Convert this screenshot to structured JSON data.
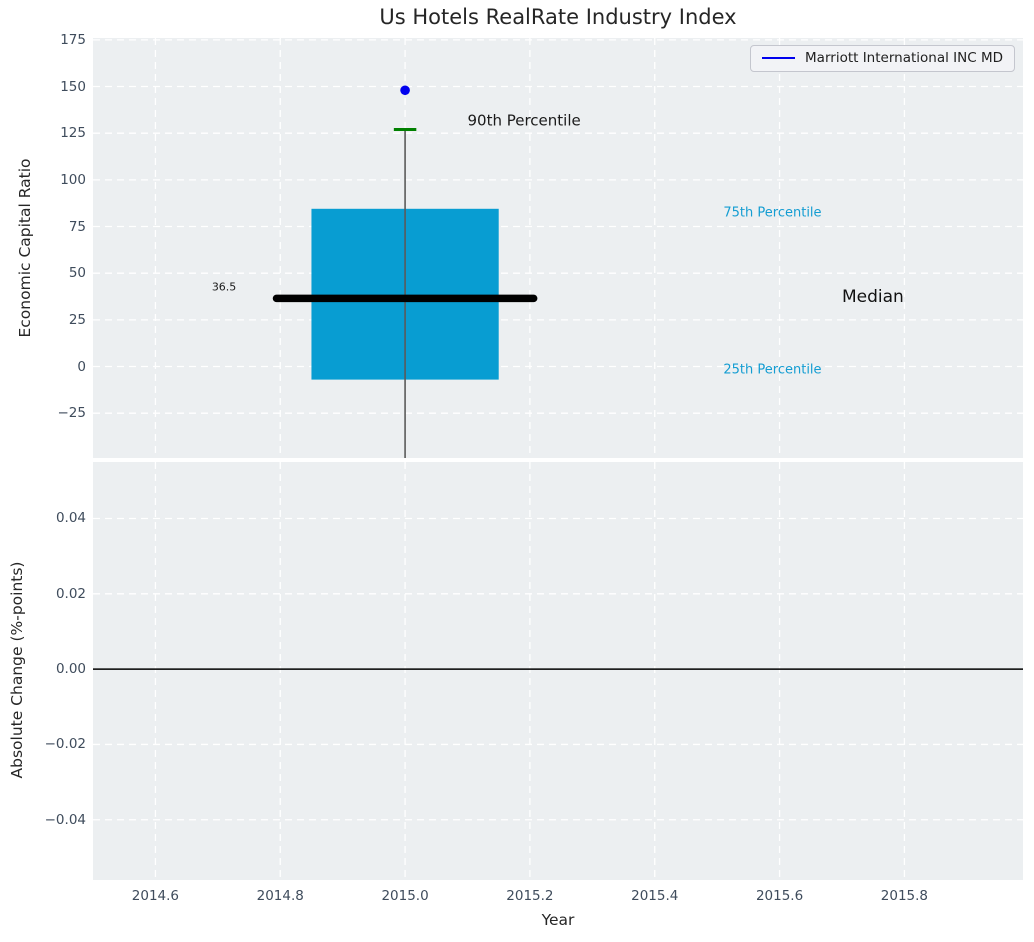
{
  "title": "Us Hotels RealRate Industry Index",
  "legend": {
    "label": "Marriott International INC MD"
  },
  "colors": {
    "figure_bg": "#ffffff",
    "axes_bg": "#eceff1",
    "grid": "#ffffff",
    "tick_label": "#3f4c5c",
    "text": "#262626",
    "box_fill": "#089dd2",
    "percentile_label": "#149dd2",
    "p90_cap": "#008000",
    "whisker": "#5a5a5a",
    "median_line": "#000000",
    "marker": "#0000ee",
    "zero_line": "#000000",
    "legend_bg": "#f2f3f6",
    "legend_border": "#c4c6ce"
  },
  "chart_data": [
    {
      "type": "boxplot",
      "title": "Us Hotels RealRate Industry Index",
      "ylabel": "Economic Capital Ratio",
      "legend_entries": [
        "Marriott International INC MD"
      ],
      "legend_position": "upper right",
      "grid": "dashed",
      "xlim": [
        2014.5,
        2015.99
      ],
      "ylim": [
        -49,
        176
      ],
      "ytick_values": [
        175,
        150,
        125,
        100,
        75,
        50,
        25,
        0,
        -25
      ],
      "ytick_labels": [
        "175",
        "150",
        "125",
        "100",
        "75",
        "50",
        "25",
        "0",
        "−25"
      ],
      "box": {
        "x": 2015.0,
        "marker_value": 148,
        "p90": 127,
        "q3": 84.5,
        "median": 36.5,
        "q1": -7,
        "whisker_low_clipped_at_axis_bottom": true,
        "box_half_width": 0.15,
        "median_half_width": 0.206,
        "cap_half_width": 0.018
      },
      "annotations": [
        {
          "name": "annotation-90th-percentile",
          "text": "90th Percentile",
          "x": 2015.1,
          "y": 131.5,
          "align": "left",
          "size": 15,
          "color": "#1a1a1a"
        },
        {
          "name": "annotation-75th-percentile",
          "text": "75th Percentile",
          "x": 2015.51,
          "y": 81.5,
          "align": "left",
          "size": 13,
          "color": "#149dd2"
        },
        {
          "name": "annotation-median",
          "text": "Median",
          "x": 2015.7,
          "y": 36.5,
          "align": "left",
          "size": 17,
          "color": "#111111"
        },
        {
          "name": "annotation-25th-percentile",
          "text": "25th Percentile",
          "x": 2015.51,
          "y": -2.5,
          "align": "left",
          "size": 13,
          "color": "#149dd2"
        },
        {
          "name": "annotation-median-value",
          "text": "36.5",
          "x": 2014.71,
          "y": 42,
          "align": "center",
          "size": 11,
          "color": "#1a1a1a"
        }
      ]
    },
    {
      "type": "line",
      "ylabel": "Absolute Change (%-points)",
      "xlabel": "Year",
      "grid": "dashed",
      "xlim": [
        2014.5,
        2015.99
      ],
      "ylim": [
        -0.056,
        0.055
      ],
      "ytick_values": [
        0.04,
        0.02,
        0,
        -0.02,
        -0.04
      ],
      "ytick_labels": [
        "0.04",
        "0.02",
        "0.00",
        "−0.02",
        "−0.04"
      ],
      "xtick_values": [
        2014.6,
        2014.8,
        2015.0,
        2015.2,
        2015.4,
        2015.6,
        2015.8
      ],
      "xtick_labels": [
        "2014.6",
        "2014.8",
        "2015.0",
        "2015.2",
        "2015.4",
        "2015.6",
        "2015.8"
      ],
      "zero_line": 0,
      "series": []
    }
  ]
}
